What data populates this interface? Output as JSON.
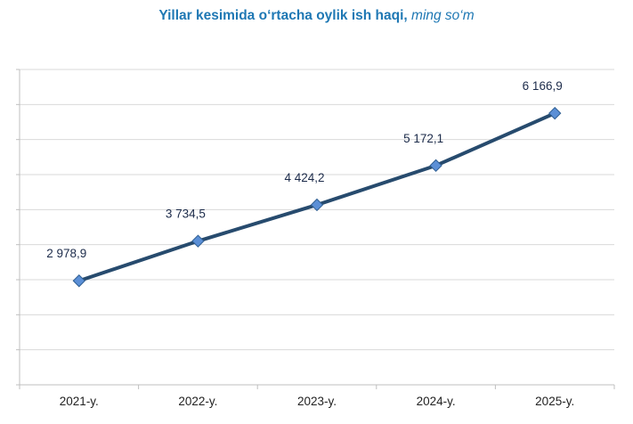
{
  "chart_data": {
    "type": "line",
    "title": "Yillar kesimida o‘rtacha oylik ish haqi,",
    "unit": "ming so‘m",
    "categories": [
      "2021-y.",
      "2022-y.",
      "2023-y.",
      "2024-y.",
      "2025-y."
    ],
    "values": [
      2978.9,
      3734.5,
      4424.2,
      5172.1,
      6166.9
    ],
    "value_labels": [
      "2 978,9",
      "3 734,5",
      "4 424,2",
      "5 172,1",
      "6 166,9"
    ],
    "ylim": [
      1000,
      7000
    ],
    "y_gridlines": 9,
    "grid": true,
    "xlabel": "",
    "ylabel": "",
    "line_color": "#274b6e",
    "marker_color": "#5b8fd6",
    "grid_color": "#d9d9d9",
    "title_color": "#1f78b4"
  }
}
